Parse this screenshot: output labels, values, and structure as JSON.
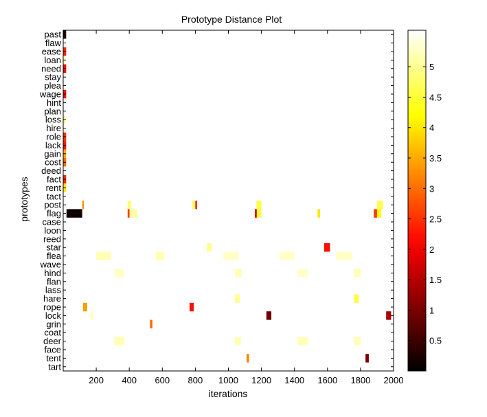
{
  "chart_data": {
    "type": "heatmap",
    "title": "Prototype Distance Plot",
    "xlabel": "iterations",
    "ylabel": "prototypes",
    "xlim": [
      0,
      2000
    ],
    "x_ticks": [
      200,
      400,
      600,
      800,
      1000,
      1200,
      1400,
      1600,
      1800,
      2000
    ],
    "rows": [
      "past",
      "flaw",
      "ease",
      "loan",
      "need",
      "stay",
      "plea",
      "wage",
      "hint",
      "plan",
      "loss",
      "hire",
      "role",
      "lack",
      "gain",
      "cost",
      "deed",
      "fact",
      "rent",
      "tact",
      "post",
      "flag",
      "case",
      "loon",
      "reed",
      "star",
      "flea",
      "wave",
      "hind",
      "flan",
      "lass",
      "hare",
      "rope",
      "lock",
      "grin",
      "coat",
      "deer",
      "face",
      "tent",
      "tart"
    ],
    "colorbar": {
      "colormap": "hot",
      "range": [
        0,
        5.6
      ],
      "ticks": [
        0.5,
        1,
        1.5,
        2,
        2.5,
        3,
        3.5,
        4,
        4.5,
        5
      ]
    },
    "background_value": 5.6,
    "cells": [
      {
        "row": "past",
        "x0": 0,
        "x1": 18,
        "value": 0.3
      },
      {
        "row": "ease",
        "x0": 0,
        "x1": 18,
        "value": 2.4
      },
      {
        "row": "need",
        "x0": 0,
        "x1": 18,
        "value": 2.2
      },
      {
        "row": "wage",
        "x0": 0,
        "x1": 18,
        "value": 2.2
      },
      {
        "row": "role",
        "x0": 0,
        "x1": 18,
        "value": 2.5
      },
      {
        "row": "lack",
        "x0": 0,
        "x1": 18,
        "value": 2.3
      },
      {
        "row": "gain",
        "x0": 0,
        "x1": 18,
        "value": 3.5
      },
      {
        "row": "cost",
        "x0": 0,
        "x1": 18,
        "value": 3.0
      },
      {
        "row": "fact",
        "x0": 0,
        "x1": 18,
        "value": 2.4
      },
      {
        "row": "rent",
        "x0": 0,
        "x1": 18,
        "value": 4.0
      },
      {
        "row": "loan",
        "x0": 0,
        "x1": 10,
        "value": 5.0
      },
      {
        "row": "loss",
        "x0": 0,
        "x1": 10,
        "value": 4.6
      },
      {
        "row": "post",
        "x0": 115,
        "x1": 125,
        "value": 3.3
      },
      {
        "row": "post",
        "x0": 390,
        "x1": 410,
        "value": 4.8
      },
      {
        "row": "post",
        "x0": 780,
        "x1": 800,
        "value": 4.8
      },
      {
        "row": "post",
        "x0": 800,
        "x1": 810,
        "value": 2.2
      },
      {
        "row": "post",
        "x0": 1170,
        "x1": 1200,
        "value": 4.6
      },
      {
        "row": "post",
        "x0": 1900,
        "x1": 1935,
        "value": 4.6
      },
      {
        "row": "flag",
        "x0": 20,
        "x1": 115,
        "value": 0.1
      },
      {
        "row": "flag",
        "x0": 390,
        "x1": 402,
        "value": 2.6
      },
      {
        "row": "flag",
        "x0": 402,
        "x1": 450,
        "value": 5.1
      },
      {
        "row": "flag",
        "x0": 1160,
        "x1": 1172,
        "value": 1.8
      },
      {
        "row": "flag",
        "x0": 1172,
        "x1": 1200,
        "value": 4.6
      },
      {
        "row": "flag",
        "x0": 1540,
        "x1": 1555,
        "value": 4.0
      },
      {
        "row": "flag",
        "x0": 1880,
        "x1": 1900,
        "value": 2.6
      },
      {
        "row": "flag",
        "x0": 1900,
        "x1": 1925,
        "value": 4.2
      },
      {
        "row": "star",
        "x0": 870,
        "x1": 900,
        "value": 5.0
      },
      {
        "row": "star",
        "x0": 1580,
        "x1": 1615,
        "value": 2.2
      },
      {
        "row": "flea",
        "x0": 200,
        "x1": 290,
        "value": 5.2
      },
      {
        "row": "flea",
        "x0": 560,
        "x1": 610,
        "value": 5.2
      },
      {
        "row": "flea",
        "x0": 970,
        "x1": 1060,
        "value": 5.3
      },
      {
        "row": "flea",
        "x0": 1310,
        "x1": 1400,
        "value": 5.3
      },
      {
        "row": "flea",
        "x0": 1650,
        "x1": 1750,
        "value": 5.3
      },
      {
        "row": "hind",
        "x0": 310,
        "x1": 370,
        "value": 5.3
      },
      {
        "row": "hind",
        "x0": 1040,
        "x1": 1080,
        "value": 5.2
      },
      {
        "row": "hind",
        "x0": 1420,
        "x1": 1480,
        "value": 5.3
      },
      {
        "row": "hind",
        "x0": 1760,
        "x1": 1800,
        "value": 5.2
      },
      {
        "row": "hare",
        "x0": 1040,
        "x1": 1070,
        "value": 5.0
      },
      {
        "row": "hare",
        "x0": 1760,
        "x1": 1790,
        "value": 4.6
      },
      {
        "row": "rope",
        "x0": 120,
        "x1": 145,
        "value": 3.4
      },
      {
        "row": "rope",
        "x0": 765,
        "x1": 790,
        "value": 2.2
      },
      {
        "row": "lock",
        "x0": 165,
        "x1": 185,
        "value": 5.3
      },
      {
        "row": "lock",
        "x0": 1230,
        "x1": 1260,
        "value": 0.9
      },
      {
        "row": "lock",
        "x0": 1955,
        "x1": 1985,
        "value": 1.4
      },
      {
        "row": "grin",
        "x0": 525,
        "x1": 540,
        "value": 3.0
      },
      {
        "row": "deer",
        "x0": 310,
        "x1": 370,
        "value": 5.2
      },
      {
        "row": "deer",
        "x0": 1040,
        "x1": 1075,
        "value": 5.2
      },
      {
        "row": "deer",
        "x0": 1420,
        "x1": 1480,
        "value": 5.2
      },
      {
        "row": "deer",
        "x0": 1760,
        "x1": 1800,
        "value": 5.2
      },
      {
        "row": "tent",
        "x0": 1110,
        "x1": 1125,
        "value": 3.2
      },
      {
        "row": "tent",
        "x0": 1830,
        "x1": 1850,
        "value": 1.0
      }
    ]
  }
}
